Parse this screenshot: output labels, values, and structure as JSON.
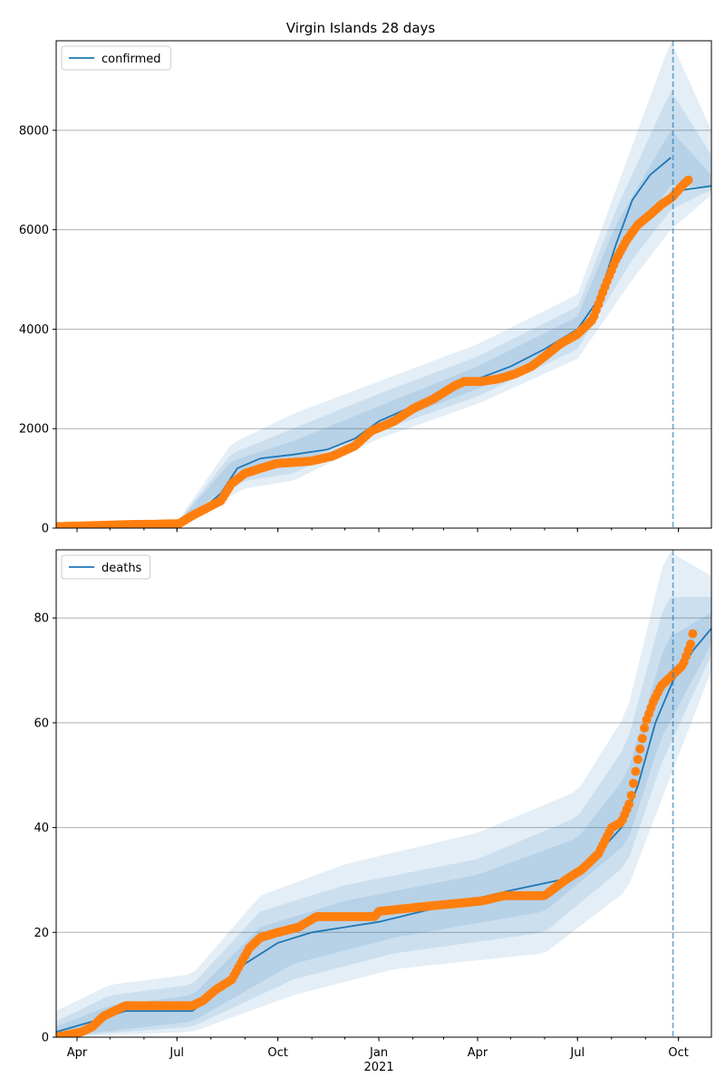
{
  "chart_data": [
    {
      "type": "line",
      "title": "Virgin Islands 28 days",
      "legend": {
        "label": "confirmed",
        "placement": "top-left"
      },
      "x_axis": {
        "type": "date",
        "range": [
          "2020-03-13",
          "2021-10-31"
        ],
        "ticks": [
          {
            "date": "2020-04-01",
            "label": "Apr"
          },
          {
            "date": "2020-07-01",
            "label": "Jul"
          },
          {
            "date": "2020-10-01",
            "label": "Oct"
          },
          {
            "date": "2021-01-01",
            "label": "Jan"
          },
          {
            "date": "2021-04-01",
            "label": "Apr"
          },
          {
            "date": "2021-07-01",
            "label": "Jul"
          },
          {
            "date": "2021-10-01",
            "label": "Oct"
          }
        ]
      },
      "y_axis": {
        "range": [
          0,
          9800
        ],
        "ticks": [
          0,
          2000,
          4000,
          6000,
          8000
        ],
        "grid": true
      },
      "forecast_date": "2021-09-26",
      "colors": {
        "model": "#1f77b4",
        "observed": "#ff7f0e",
        "band": "#1f77b4"
      },
      "observed": [
        [
          "2020-03-13",
          30
        ],
        [
          "2020-04-15",
          50
        ],
        [
          "2020-05-15",
          70
        ],
        [
          "2020-06-15",
          80
        ],
        [
          "2020-07-03",
          90
        ],
        [
          "2020-07-15",
          250
        ],
        [
          "2020-07-28",
          400
        ],
        [
          "2020-08-10",
          550
        ],
        [
          "2020-08-20",
          900
        ],
        [
          "2020-09-01",
          1100
        ],
        [
          "2020-09-15",
          1200
        ],
        [
          "2020-09-30",
          1300
        ],
        [
          "2020-10-15",
          1320
        ],
        [
          "2020-11-01",
          1350
        ],
        [
          "2020-11-20",
          1450
        ],
        [
          "2020-12-10",
          1650
        ],
        [
          "2020-12-25",
          1950
        ],
        [
          "2021-01-15",
          2150
        ],
        [
          "2021-02-01",
          2400
        ],
        [
          "2021-02-20",
          2600
        ],
        [
          "2021-03-10",
          2850
        ],
        [
          "2021-03-20",
          2950
        ],
        [
          "2021-04-05",
          2950
        ],
        [
          "2021-04-20",
          3000
        ],
        [
          "2021-05-05",
          3100
        ],
        [
          "2021-05-20",
          3250
        ],
        [
          "2021-06-01",
          3450
        ],
        [
          "2021-06-15",
          3700
        ],
        [
          "2021-07-01",
          3900
        ],
        [
          "2021-07-15",
          4200
        ],
        [
          "2021-07-25",
          4800
        ],
        [
          "2021-08-05",
          5400
        ],
        [
          "2021-08-15",
          5800
        ],
        [
          "2021-08-25",
          6100
        ],
        [
          "2021-09-05",
          6300
        ],
        [
          "2021-09-15",
          6500
        ],
        [
          "2021-09-25",
          6650
        ],
        [
          "2021-10-05",
          6900
        ],
        [
          "2021-10-10",
          7000
        ]
      ],
      "model": [
        [
          "2020-03-13",
          20
        ],
        [
          "2020-07-01",
          80
        ],
        [
          "2020-07-20",
          300
        ],
        [
          "2020-08-10",
          700
        ],
        [
          "2020-08-25",
          1200
        ],
        [
          "2020-09-15",
          1400
        ],
        [
          "2020-10-15",
          1480
        ],
        [
          "2020-11-15",
          1580
        ],
        [
          "2020-12-10",
          1800
        ],
        [
          "2021-01-01",
          2150
        ],
        [
          "2021-02-01",
          2450
        ],
        [
          "2021-03-01",
          2750
        ],
        [
          "2021-04-01",
          3000
        ],
        [
          "2021-05-01",
          3250
        ],
        [
          "2021-06-01",
          3600
        ],
        [
          "2021-07-01",
          4000
        ],
        [
          "2021-07-20",
          4600
        ],
        [
          "2021-08-05",
          5700
        ],
        [
          "2021-08-20",
          6600
        ],
        [
          "2021-09-05",
          7100
        ],
        [
          "2021-09-24",
          7450
        ]
      ],
      "forecast_line": [
        [
          "2021-09-26",
          6700
        ],
        [
          "2021-10-05",
          6800
        ],
        [
          "2021-10-31",
          6880
        ]
      ],
      "bands": [
        {
          "pct": 95,
          "lo": [
            [
              "2020-07-01",
              60
            ],
            [
              "2020-09-01",
              800
            ],
            [
              "2020-10-15",
              950
            ],
            [
              "2021-01-01",
              1800
            ],
            [
              "2021-04-01",
              2500
            ],
            [
              "2021-07-01",
              3400
            ],
            [
              "2021-08-20",
              5000
            ],
            [
              "2021-09-24",
              6000
            ],
            [
              "2021-10-31",
              6700
            ]
          ],
          "hi": [
            [
              "2020-07-01",
              120
            ],
            [
              "2020-08-20",
              1700
            ],
            [
              "2020-10-15",
              2300
            ],
            [
              "2021-01-01",
              2950
            ],
            [
              "2021-04-01",
              3700
            ],
            [
              "2021-07-01",
              4700
            ],
            [
              "2021-08-05",
              6800
            ],
            [
              "2021-09-24",
              9800
            ],
            [
              "2021-10-31",
              8000
            ]
          ]
        },
        {
          "pct": 80,
          "lo": [
            [
              "2020-07-01",
              70
            ],
            [
              "2020-09-01",
              950
            ],
            [
              "2020-10-15",
              1100
            ],
            [
              "2021-01-01",
              1950
            ],
            [
              "2021-04-01",
              2650
            ],
            [
              "2021-07-01",
              3600
            ],
            [
              "2021-08-20",
              5400
            ],
            [
              "2021-09-24",
              6400
            ],
            [
              "2021-10-31",
              6800
            ]
          ],
          "hi": [
            [
              "2020-07-01",
              100
            ],
            [
              "2020-08-20",
              1500
            ],
            [
              "2020-10-15",
              2000
            ],
            [
              "2021-01-01",
              2700
            ],
            [
              "2021-04-01",
              3450
            ],
            [
              "2021-07-01",
              4450
            ],
            [
              "2021-08-05",
              6400
            ],
            [
              "2021-09-24",
              8800
            ],
            [
              "2021-10-31",
              7500
            ]
          ]
        },
        {
          "pct": 50,
          "lo": [
            [
              "2020-07-01",
              75
            ],
            [
              "2020-09-01",
              1100
            ],
            [
              "2020-10-15",
              1250
            ],
            [
              "2021-01-01",
              2050
            ],
            [
              "2021-04-01",
              2800
            ],
            [
              "2021-07-01",
              3800
            ],
            [
              "2021-08-20",
              5800
            ],
            [
              "2021-09-24",
              6900
            ],
            [
              "2021-10-31",
              6850
            ]
          ],
          "hi": [
            [
              "2020-07-01",
              90
            ],
            [
              "2020-08-20",
              1350
            ],
            [
              "2020-10-15",
              1750
            ],
            [
              "2021-01-01",
              2450
            ],
            [
              "2021-04-01",
              3250
            ],
            [
              "2021-07-01",
              4250
            ],
            [
              "2021-08-05",
              6100
            ],
            [
              "2021-09-24",
              8000
            ],
            [
              "2021-10-31",
              7100
            ]
          ]
        }
      ]
    },
    {
      "type": "line",
      "legend": {
        "label": "deaths",
        "placement": "top-left"
      },
      "x_axis": {
        "type": "date",
        "range": [
          "2020-03-13",
          "2021-10-31"
        ],
        "ticks": [
          {
            "date": "2020-04-01",
            "label": "Apr"
          },
          {
            "date": "2020-07-01",
            "label": "Jul"
          },
          {
            "date": "2020-10-01",
            "label": "Oct"
          },
          {
            "date": "2021-01-01",
            "label": "Jan",
            "sublabel": "2021"
          },
          {
            "date": "2021-04-01",
            "label": "Apr"
          },
          {
            "date": "2021-07-01",
            "label": "Jul"
          },
          {
            "date": "2021-10-01",
            "label": "Oct"
          }
        ]
      },
      "y_axis": {
        "range": [
          0,
          93
        ],
        "ticks": [
          0,
          20,
          40,
          60,
          80
        ],
        "grid": true
      },
      "forecast_date": "2021-09-26",
      "colors": {
        "model": "#1f77b4",
        "observed": "#ff7f0e",
        "band": "#1f77b4"
      },
      "observed": [
        [
          "2020-03-13",
          0
        ],
        [
          "2020-04-05",
          1
        ],
        [
          "2020-04-15",
          2
        ],
        [
          "2020-04-25",
          4
        ],
        [
          "2020-05-15",
          6
        ],
        [
          "2020-07-15",
          6
        ],
        [
          "2020-07-25",
          7
        ],
        [
          "2020-08-05",
          9
        ],
        [
          "2020-08-20",
          11
        ],
        [
          "2020-08-28",
          14
        ],
        [
          "2020-09-05",
          17
        ],
        [
          "2020-09-15",
          19
        ],
        [
          "2020-10-01",
          20
        ],
        [
          "2020-10-20",
          21
        ],
        [
          "2020-11-05",
          23
        ],
        [
          "2020-12-28",
          23
        ],
        [
          "2021-01-01",
          24
        ],
        [
          "2021-02-15",
          25
        ],
        [
          "2021-04-05",
          26
        ],
        [
          "2021-04-25",
          27
        ],
        [
          "2021-06-01",
          27
        ],
        [
          "2021-06-20",
          30
        ],
        [
          "2021-07-05",
          32
        ],
        [
          "2021-07-20",
          35
        ],
        [
          "2021-08-01",
          40
        ],
        [
          "2021-08-10",
          41
        ],
        [
          "2021-08-18",
          45
        ],
        [
          "2021-08-25",
          53
        ],
        [
          "2021-09-01",
          60
        ],
        [
          "2021-09-08",
          64
        ],
        [
          "2021-09-15",
          67
        ],
        [
          "2021-09-25",
          69
        ],
        [
          "2021-10-05",
          71
        ],
        [
          "2021-10-12",
          75
        ],
        [
          "2021-10-15",
          78
        ]
      ],
      "model": [
        [
          "2020-03-13",
          1
        ],
        [
          "2020-04-15",
          3
        ],
        [
          "2020-05-15",
          5
        ],
        [
          "2020-07-15",
          5
        ],
        [
          "2020-08-10",
          9
        ],
        [
          "2020-09-01",
          14
        ],
        [
          "2020-10-01",
          18
        ],
        [
          "2020-11-01",
          20
        ],
        [
          "2021-01-01",
          22
        ],
        [
          "2021-03-01",
          25
        ],
        [
          "2021-05-01",
          28
        ],
        [
          "2021-06-15",
          30
        ],
        [
          "2021-07-15",
          34
        ],
        [
          "2021-08-10",
          40
        ],
        [
          "2021-08-25",
          48
        ],
        [
          "2021-09-10",
          60
        ],
        [
          "2021-09-26",
          68
        ],
        [
          "2021-10-15",
          74
        ],
        [
          "2021-10-31",
          78
        ]
      ],
      "bands": [
        {
          "pct": 95,
          "lo": [
            [
              "2020-03-13",
              0
            ],
            [
              "2020-07-15",
              1
            ],
            [
              "2020-10-15",
              8
            ],
            [
              "2021-01-15",
              13
            ],
            [
              "2021-06-01",
              16
            ],
            [
              "2021-08-15",
              28
            ],
            [
              "2021-09-15",
              45
            ],
            [
              "2021-10-31",
              70
            ]
          ],
          "hi": [
            [
              "2020-03-13",
              5
            ],
            [
              "2020-05-01",
              10
            ],
            [
              "2020-07-15",
              12
            ],
            [
              "2020-09-15",
              27
            ],
            [
              "2020-12-01",
              33
            ],
            [
              "2021-04-01",
              39
            ],
            [
              "2021-07-01",
              47
            ],
            [
              "2021-08-15",
              62
            ],
            [
              "2021-09-20",
              93
            ],
            [
              "2021-10-31",
              88
            ]
          ]
        },
        {
          "pct": 80,
          "lo": [
            [
              "2020-03-13",
              0
            ],
            [
              "2020-07-15",
              2
            ],
            [
              "2020-10-15",
              11
            ],
            [
              "2021-01-15",
              16
            ],
            [
              "2021-06-01",
              20
            ],
            [
              "2021-08-15",
              33
            ],
            [
              "2021-09-15",
              52
            ],
            [
              "2021-10-31",
              73
            ]
          ],
          "hi": [
            [
              "2020-03-13",
              3
            ],
            [
              "2020-05-01",
              8
            ],
            [
              "2020-07-15",
              10
            ],
            [
              "2020-09-15",
              24
            ],
            [
              "2020-12-01",
              29
            ],
            [
              "2021-04-01",
              34
            ],
            [
              "2021-07-01",
              42
            ],
            [
              "2021-08-15",
              56
            ],
            [
              "2021-09-20",
              84
            ],
            [
              "2021-10-31",
              84
            ]
          ]
        },
        {
          "pct": 50,
          "lo": [
            [
              "2020-03-13",
              0
            ],
            [
              "2020-07-15",
              3
            ],
            [
              "2020-10-15",
              14
            ],
            [
              "2021-01-15",
              19
            ],
            [
              "2021-06-01",
              24
            ],
            [
              "2021-08-15",
              37
            ],
            [
              "2021-09-15",
              57
            ],
            [
              "2021-10-31",
              75
            ]
          ],
          "hi": [
            [
              "2020-03-13",
              2
            ],
            [
              "2020-05-01",
              6
            ],
            [
              "2020-07-15",
              8
            ],
            [
              "2020-09-15",
              21
            ],
            [
              "2020-12-01",
              26
            ],
            [
              "2021-04-01",
              31
            ],
            [
              "2021-07-01",
              38
            ],
            [
              "2021-08-15",
              50
            ],
            [
              "2021-09-20",
              76
            ],
            [
              "2021-10-31",
              81
            ]
          ]
        }
      ]
    }
  ]
}
